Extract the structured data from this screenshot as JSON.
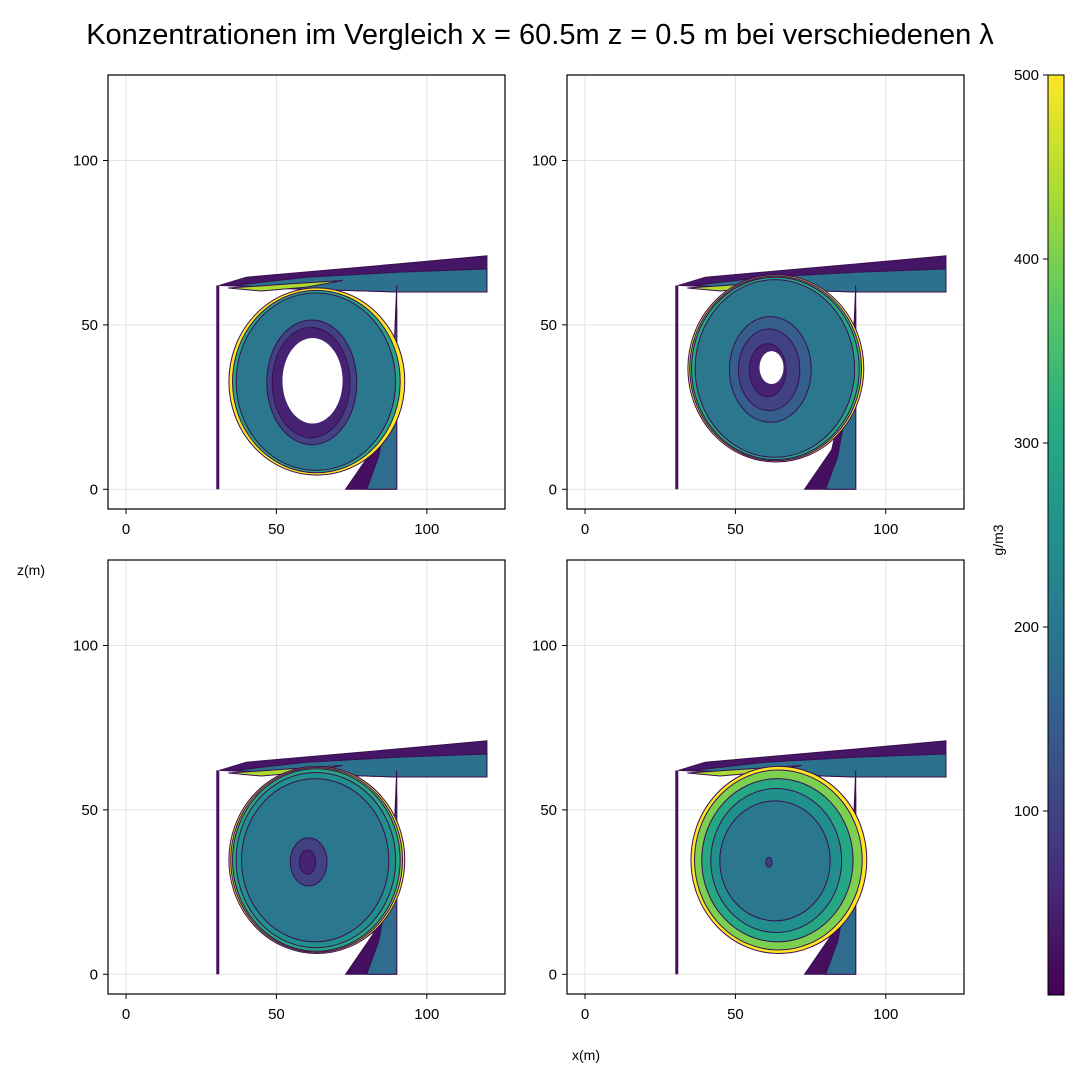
{
  "figure": {
    "title": "Konzentrationen im Vergleich x = 60.5m z = 0.5 m bei verschiedenen λ",
    "xlabel": "x(m)",
    "ylabel": "z(m)",
    "colorbar_label": "g/m3"
  },
  "colors": {
    "viridis": [
      "#440154",
      "#472c7a",
      "#3b518b",
      "#2c718e",
      "#21908d",
      "#27ad81",
      "#5cc863",
      "#aadc32",
      "#fde725"
    ],
    "grid": "#e3e3e3"
  },
  "chart_data": [
    {
      "type": "heatmap",
      "panel": "top-left",
      "xlim": [
        -6,
        126
      ],
      "ylim": [
        -6,
        126
      ],
      "x_ticks": [
        0,
        50,
        100
      ],
      "y_ticks": [
        0,
        50,
        100
      ],
      "x_tick_labels": [
        "0",
        "50",
        "100"
      ],
      "y_tick_labels": [
        "0",
        "50",
        "100"
      ],
      "domain": {
        "column_x": [
          30,
          31
        ],
        "chamber_x": [
          31,
          90
        ],
        "chamber_z": [
          4,
          62
        ],
        "duct_x": [
          90,
          120
        ],
        "duct_z": [
          60,
          71
        ],
        "ramp_x": [
          73,
          90
        ]
      },
      "vortex_center": [
        62,
        32
      ],
      "concentration_levels": [
        0,
        50,
        100,
        150,
        200,
        250,
        300,
        350,
        400,
        450,
        500
      ],
      "core_empty_radius": [
        10,
        13
      ],
      "ring_levels": [
        {
          "level": 50,
          "rx": 19,
          "rz": 23
        },
        {
          "level": 100,
          "rx": 22,
          "rz": 26
        },
        {
          "level": 200,
          "rx": 39,
          "rz": 37
        },
        {
          "level": 300,
          "rx": 41,
          "rz": 38
        },
        {
          "level": 500,
          "rx": 43,
          "rz": 39
        }
      ]
    },
    {
      "type": "heatmap",
      "panel": "top-right",
      "xlim": [
        -6,
        126
      ],
      "ylim": [
        -6,
        126
      ],
      "x_ticks": [
        0,
        50,
        100
      ],
      "y_ticks": [
        0,
        50,
        100
      ],
      "x_tick_labels": [
        "0",
        "50",
        "100"
      ],
      "y_tick_labels": [
        "0",
        "50",
        "100"
      ],
      "vortex_center": [
        62,
        36
      ],
      "concentration_levels": [
        0,
        50,
        100,
        150,
        200,
        250,
        300,
        350,
        400,
        450,
        500
      ],
      "core_empty_radius": [
        4,
        5
      ],
      "ring_levels": [
        {
          "level": 50,
          "rx": 9,
          "rz": 11
        },
        {
          "level": 100,
          "rx": 15,
          "rz": 17
        },
        {
          "level": 150,
          "rx": 20,
          "rz": 22
        },
        {
          "level": 200,
          "rx": 39,
          "rz": 37
        },
        {
          "level": 300,
          "rx": 41,
          "rz": 38
        },
        {
          "level": 350,
          "rx": 42,
          "rz": 38.5
        },
        {
          "level": 500,
          "rx": 43,
          "rz": 39
        }
      ]
    },
    {
      "type": "heatmap",
      "panel": "bottom-left",
      "xlim": [
        -6,
        126
      ],
      "ylim": [
        -6,
        126
      ],
      "x_ticks": [
        0,
        50,
        100
      ],
      "y_ticks": [
        0,
        50,
        100
      ],
      "x_tick_labels": [
        "0",
        "50",
        "100"
      ],
      "y_tick_labels": [
        "0",
        "50",
        "100"
      ],
      "vortex_center": [
        62,
        34
      ],
      "concentration_levels": [
        0,
        50,
        100,
        150,
        200,
        250,
        300,
        350,
        400,
        450,
        500
      ],
      "core_empty_radius": [
        0,
        0
      ],
      "ring_levels": [
        {
          "level": 50,
          "rx": 4,
          "rz": 5
        },
        {
          "level": 100,
          "rx": 9,
          "rz": 10
        },
        {
          "level": 200,
          "rx": 36,
          "rz": 34
        },
        {
          "level": 250,
          "rx": 39,
          "rz": 36.5
        },
        {
          "level": 300,
          "rx": 41,
          "rz": 38
        },
        {
          "level": 400,
          "rx": 42,
          "rz": 38.5
        },
        {
          "level": 500,
          "rx": 43,
          "rz": 39
        }
      ]
    },
    {
      "type": "heatmap",
      "panel": "bottom-right",
      "xlim": [
        -6,
        126
      ],
      "ylim": [
        -6,
        126
      ],
      "x_ticks": [
        0,
        50,
        100
      ],
      "y_ticks": [
        0,
        50,
        100
      ],
      "x_tick_labels": [
        "0",
        "50",
        "100"
      ],
      "y_tick_labels": [
        "0",
        "50",
        "100"
      ],
      "vortex_center": [
        63,
        34
      ],
      "concentration_levels": [
        0,
        50,
        100,
        150,
        200,
        250,
        300,
        350,
        400,
        450,
        500
      ],
      "core_empty_radius": [
        0,
        0
      ],
      "ring_levels": [
        {
          "level": 100,
          "rx": 1.5,
          "rz": 2
        },
        {
          "level": 200,
          "rx": 27,
          "rz": 25
        },
        {
          "level": 250,
          "rx": 32,
          "rz": 30
        },
        {
          "level": 300,
          "rx": 37,
          "rz": 34
        },
        {
          "level": 400,
          "rx": 41,
          "rz": 37.5
        },
        {
          "level": 500,
          "rx": 43,
          "rz": 39
        }
      ]
    }
  ],
  "colorbar": {
    "range": [
      0,
      500
    ],
    "ticks": [
      100,
      200,
      300,
      400,
      500
    ],
    "tick_labels": [
      "100",
      "200",
      "300",
      "400",
      "500"
    ]
  }
}
